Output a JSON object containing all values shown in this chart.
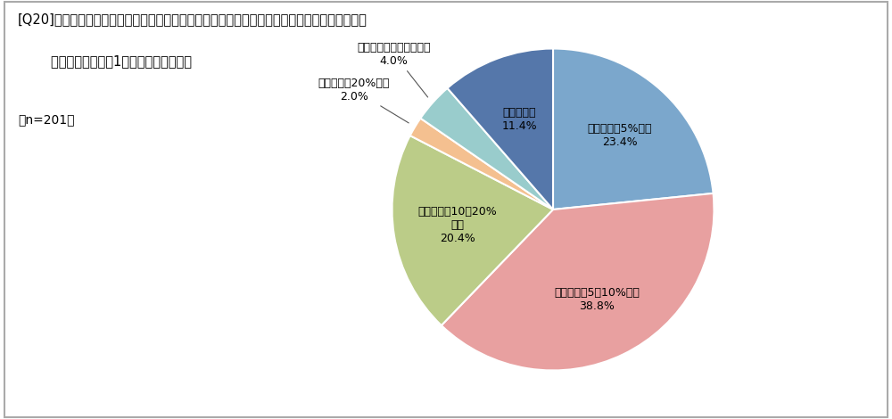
{
  "title_line1": "[Q20]サブリース以外の賃貸住宅の管理のための費用は、家賃収入のどの程度に相当しますか。",
  "title_line2": "        最も多いケースを1つお選びください。",
  "sample_size": "（n=201）",
  "labels": [
    "家賃収入の5%未満",
    "家賃収入の5～10%未満",
    "家賃収入の10～20%\n未満",
    "家賃収入の20%以上",
    "管理費用は払っていない",
    "わからない"
  ],
  "pct_labels": [
    "23.4%",
    "38.8%",
    "20.4%",
    "2.0%",
    "4.0%",
    "11.4%"
  ],
  "values": [
    23.4,
    38.8,
    20.4,
    2.0,
    4.0,
    11.4
  ],
  "colors": [
    "#7BA7CC",
    "#E8A0A0",
    "#BBCC88",
    "#F4C090",
    "#99CCCC",
    "#5577AA"
  ],
  "startangle": 90,
  "background_color": "#ffffff",
  "border_color": "#aaaaaa"
}
